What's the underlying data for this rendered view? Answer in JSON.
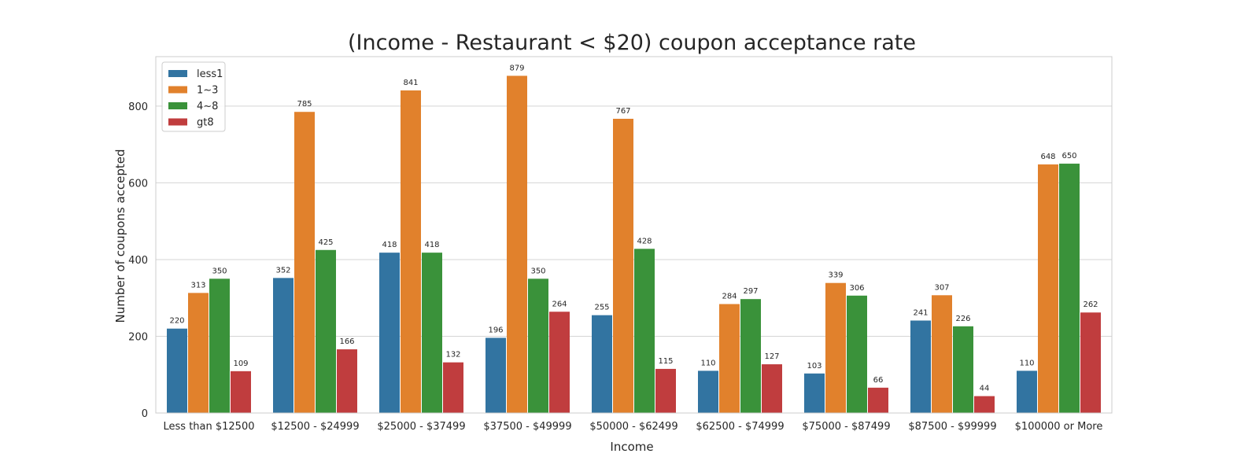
{
  "chart_data": {
    "type": "bar",
    "title": "(Income - Restaurant < $20) coupon acceptance rate",
    "xlabel": "Income",
    "ylabel": "Number of coupons accepted",
    "categories": [
      "Less than $12500",
      "$12500 - $24999",
      "$25000 - $37499",
      "$37500 - $49999",
      "$50000 - $62499",
      "$62500 - $74999",
      "$75000 - $87499",
      "$87500 - $99999",
      "$100000 or More"
    ],
    "series": [
      {
        "name": "less1",
        "color": "#3274a1",
        "values": [
          220,
          352,
          418,
          196,
          255,
          110,
          103,
          241,
          110
        ]
      },
      {
        "name": "1~3",
        "color": "#e1812c",
        "values": [
          313,
          785,
          841,
          879,
          767,
          284,
          339,
          307,
          648
        ]
      },
      {
        "name": "4~8",
        "color": "#3a923a",
        "values": [
          350,
          425,
          418,
          350,
          428,
          297,
          306,
          226,
          650
        ]
      },
      {
        "name": "gt8",
        "color": "#c03d3e",
        "values": [
          109,
          166,
          132,
          264,
          115,
          127,
          66,
          44,
          262
        ]
      }
    ],
    "ylim": [
      0,
      929
    ],
    "yticks": [
      0,
      200,
      400,
      600,
      800
    ],
    "grid": true,
    "legend": "upper-left"
  }
}
